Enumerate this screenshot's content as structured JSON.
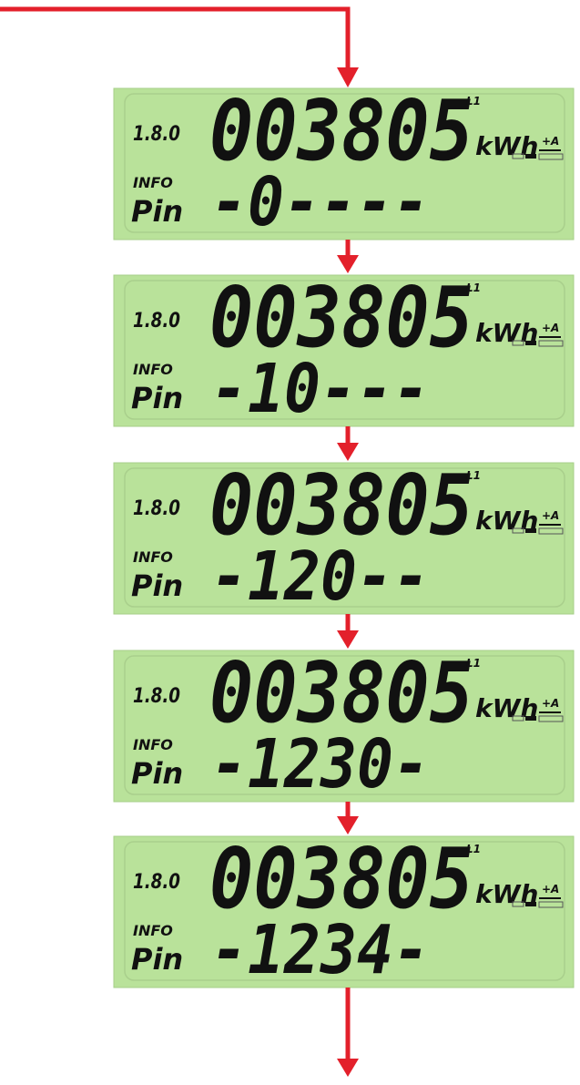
{
  "panels": [
    {
      "register": "1.8.0",
      "reading": "003805",
      "unit": "kWh",
      "phase": "L1",
      "direction": "+A",
      "mode": "INFO",
      "label": "Pin",
      "pin": "-0----"
    },
    {
      "register": "1.8.0",
      "reading": "003805",
      "unit": "kWh",
      "phase": "L1",
      "direction": "+A",
      "mode": "INFO",
      "label": "Pin",
      "pin": "-10---"
    },
    {
      "register": "1.8.0",
      "reading": "003805",
      "unit": "kWh",
      "phase": "L1",
      "direction": "+A",
      "mode": "INFO",
      "label": "Pin",
      "pin": "-120--"
    },
    {
      "register": "1.8.0",
      "reading": "003805",
      "unit": "kWh",
      "phase": "L1",
      "direction": "+A",
      "mode": "INFO",
      "label": "Pin",
      "pin": "-1230-"
    },
    {
      "register": "1.8.0",
      "reading": "003805",
      "unit": "kWh",
      "phase": "L1",
      "direction": "+A",
      "mode": "INFO",
      "label": "Pin",
      "pin": "-1234-"
    }
  ]
}
